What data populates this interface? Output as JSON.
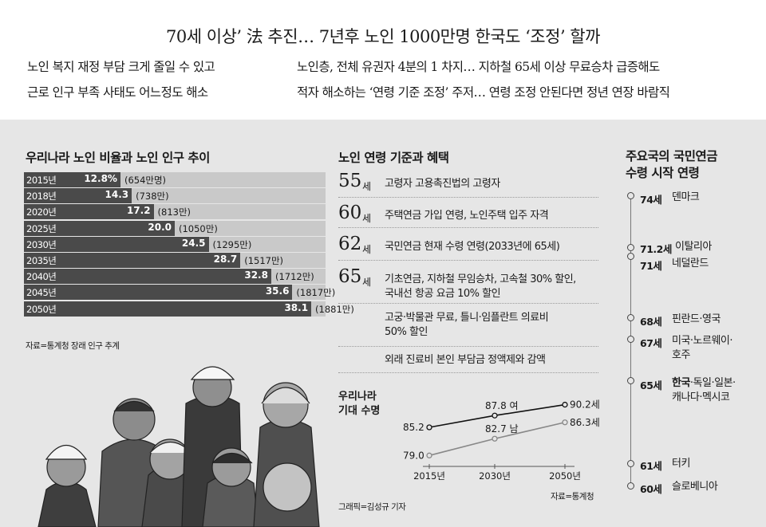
{
  "headline": "70세 이상’ 法 추진… 7년후 노인 1000만명 한국도 ‘조정’ 할까",
  "subheads": {
    "left": [
      "노인 복지 재정 부담 크게 줄일 수 있고",
      "근로 인구 부족 사태도 어느정도 해소"
    ],
    "right": [
      "노인층, 전체 유권자 4분의 1 차지… 지하철 65세 이상 무료승차 급증해도",
      "적자 해소하는 ‘연령 기준 조정’ 주저… 연령 조정 안된다면 정년 연장 바람직"
    ]
  },
  "chart_data": [
    {
      "type": "bar",
      "title": "우리나라 노인 비율과 노인 인구 추이",
      "categories": [
        "2015년",
        "2018년",
        "2020년",
        "2025년",
        "2030년",
        "2035년",
        "2040년",
        "2045년",
        "2050년"
      ],
      "values": [
        12.8,
        14.3,
        17.2,
        20.0,
        24.5,
        28.7,
        32.8,
        35.6,
        38.1
      ],
      "value_labels": [
        "12.8%",
        "14.3",
        "17.2",
        "20.0",
        "24.5",
        "28.7",
        "32.8",
        "35.6",
        "38.1"
      ],
      "population_labels": [
        "(654만명)",
        "(738만)",
        "(813만)",
        "(1050만)",
        "(1295만)",
        "(1517만)",
        "(1712만)",
        "(1817만)",
        "(1881만)"
      ],
      "xlim": [
        0,
        40
      ],
      "source": "자료=통계청 장래 인구 추계"
    },
    {
      "type": "line",
      "title": "우리나라\n기대 수명",
      "x": [
        "2015년",
        "2030년",
        "2050년"
      ],
      "series": [
        {
          "name": "여",
          "values": [
            85.2,
            87.8,
            90.2
          ],
          "labels": [
            "85.2",
            "87.8 여",
            "90.2세"
          ]
        },
        {
          "name": "남",
          "values": [
            79.0,
            82.7,
            86.3
          ],
          "labels": [
            "79.0",
            "82.7 남",
            "86.3세"
          ]
        }
      ],
      "source": "자료=통계청"
    }
  ],
  "benefits": {
    "title": "노인 연령 기준과 혜택",
    "items": [
      {
        "age": "55",
        "unit": "세",
        "text": "고령자 고용촉진법의 고령자"
      },
      {
        "age": "60",
        "unit": "세",
        "text": "주택연금 가입 연령, 노인주택 입주 자격"
      },
      {
        "age": "62",
        "unit": "세",
        "text": "국민연금 현재 수령 연령(2033년에 65세)"
      },
      {
        "age": "65",
        "unit": "세",
        "text": "기초연금, 지하철 무임승차, 고속철 30% 할인,\n국내선 항공 요금 10% 할인"
      },
      {
        "age": "",
        "unit": "",
        "text": "고궁·박물관 무료, 틀니·임플란트 의료비\n50% 할인"
      },
      {
        "age": "",
        "unit": "",
        "text": "외래 진료비 본인 부담금 정액제와 감액"
      }
    ]
  },
  "pension": {
    "title": "주요국의 국민연금\n수령 시작 연령",
    "items": [
      {
        "age": "74세",
        "country": "덴마크"
      },
      {
        "age": "71.2세",
        "country": "이탈리아"
      },
      {
        "age": "71세",
        "country": "네덜란드"
      },
      {
        "age": "68세",
        "country": "핀란드·영국"
      },
      {
        "age": "67세",
        "country": "미국·노르웨이·\n호주"
      },
      {
        "age": "65세",
        "country_bold": "한국",
        "country": "·독일·일본·\n캐나다·멕시코"
      },
      {
        "age": "61세",
        "country": "터키"
      },
      {
        "age": "60세",
        "country": "슬로베니아"
      }
    ]
  },
  "credit": "그래픽=김성규 기자",
  "colors": {
    "panel": "#e6e6e6",
    "bar_track": "#c9c9c9",
    "bar_fill": "#4a4a4a",
    "female_line": "#111111",
    "male_line": "#888888"
  }
}
